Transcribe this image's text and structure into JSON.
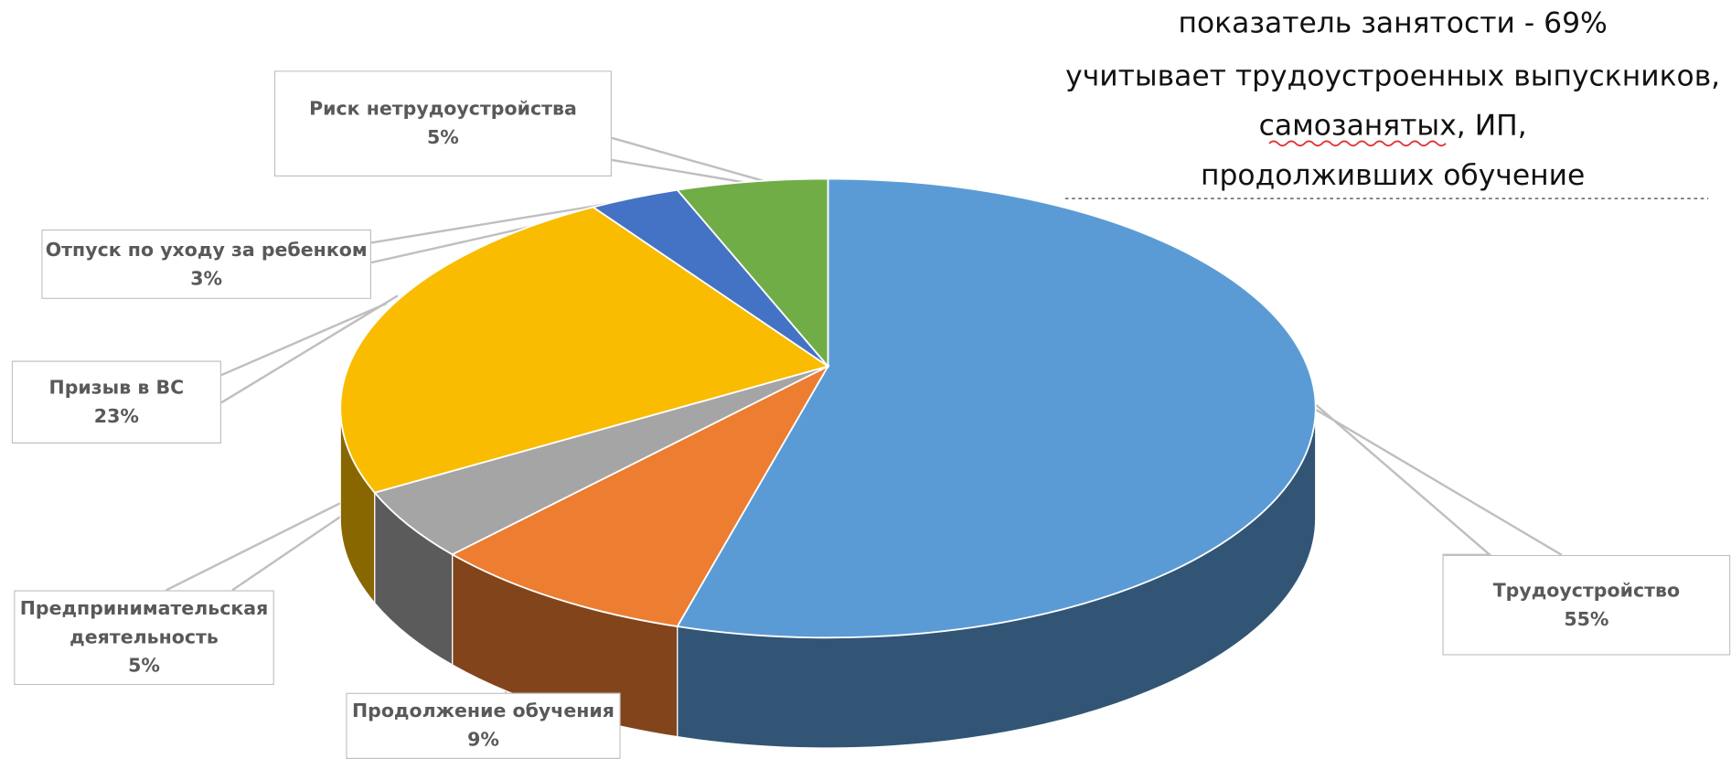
{
  "chart_data": {
    "type": "pie3d",
    "annotation": [
      "показатель занятости - 69%",
      "учитывает трудоустроенных выпускников,",
      "самозанятых, ИП,",
      "продолживших обучение"
    ],
    "categories": [
      "Трудоустройство",
      "Продолжение обучения",
      "Предпринимательская деятельность",
      "Призыв в ВС",
      "Отпуск по уходу за ребенком",
      "Риск нетрудоустройства"
    ],
    "values": [
      55,
      9,
      5,
      23,
      3,
      5
    ],
    "value_labels": [
      "55%",
      "9%",
      "5%",
      "23%",
      "3%",
      "5%"
    ],
    "colors": [
      "#5b9bd5",
      "#ed7d31",
      "#a5a5a5",
      "#f9bc00",
      "#4472c4",
      "#70ad47"
    ]
  }
}
